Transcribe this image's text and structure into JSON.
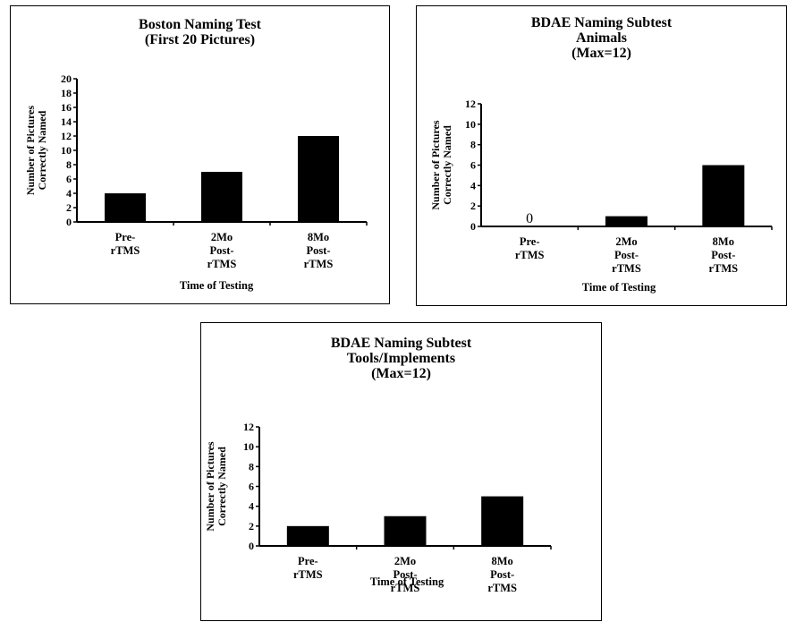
{
  "chart_data": [
    {
      "type": "bar",
      "title_lines": [
        "Boston Naming Test",
        "(First 20 Pictures)"
      ],
      "xlabel": "Time of Testing",
      "ylabel_lines": [
        "Number of Pictures",
        "Correctly Named"
      ],
      "categories": [
        [
          "Pre-",
          "rTMS"
        ],
        [
          "2Mo",
          "Post-",
          "rTMS"
        ],
        [
          "8Mo",
          "Post-",
          "rTMS"
        ]
      ],
      "values": [
        4,
        7,
        12
      ],
      "ylim": [
        0,
        20
      ],
      "yticks": [
        0,
        2,
        4,
        6,
        8,
        10,
        12,
        14,
        16,
        18,
        20
      ],
      "zero_labels": [],
      "grid": false,
      "bar_color": "#000000"
    },
    {
      "type": "bar",
      "title_lines": [
        "BDAE Naming Subtest",
        "Animals",
        "(Max=12)"
      ],
      "xlabel": "Time of Testing",
      "ylabel_lines": [
        "Number of Pictures",
        "Correctly Named"
      ],
      "categories": [
        [
          "Pre-",
          "rTMS"
        ],
        [
          "2Mo",
          "Post-",
          "rTMS"
        ],
        [
          "8Mo",
          "Post-",
          "rTMS"
        ]
      ],
      "values": [
        0,
        1,
        6
      ],
      "ylim": [
        0,
        12
      ],
      "yticks": [
        0,
        2,
        4,
        6,
        8,
        10,
        12
      ],
      "zero_labels": [
        "0",
        "",
        ""
      ],
      "grid": false,
      "bar_color": "#000000"
    },
    {
      "type": "bar",
      "title_lines": [
        "BDAE Naming Subtest",
        "Tools/Implements",
        "(Max=12)"
      ],
      "xlabel": "Time of Testing",
      "ylabel_lines": [
        "Number of Pictures",
        "Correctly Named"
      ],
      "categories": [
        [
          "Pre-",
          "rTMS"
        ],
        [
          "2Mo",
          "Post-",
          "rTMS"
        ],
        [
          "8Mo",
          "Post-",
          "rTMS"
        ]
      ],
      "values": [
        2,
        3,
        5
      ],
      "ylim": [
        0,
        12
      ],
      "yticks": [
        0,
        2,
        4,
        6,
        8,
        10,
        12
      ],
      "zero_labels": [],
      "grid": false,
      "bar_color": "#000000"
    }
  ]
}
